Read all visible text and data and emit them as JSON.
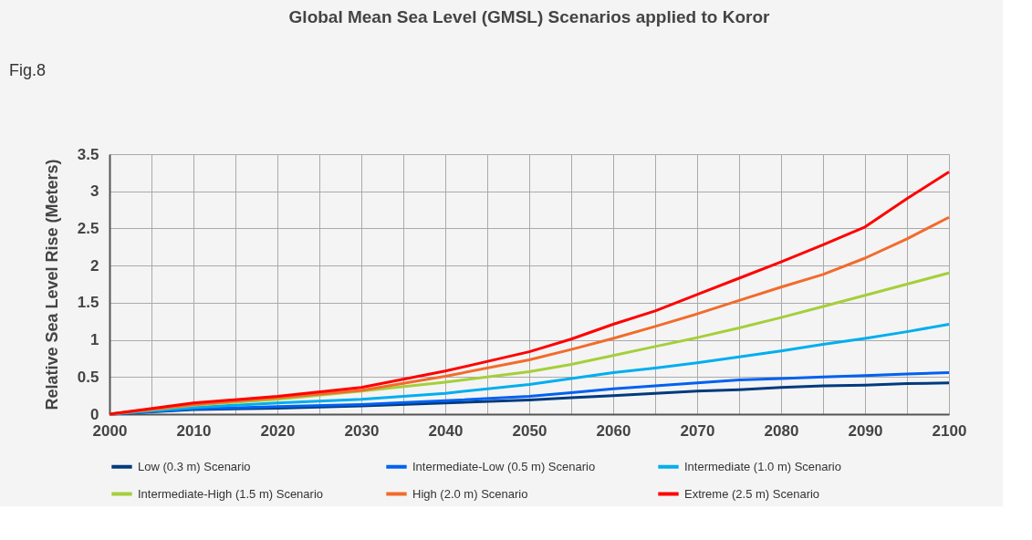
{
  "chart_data": {
    "type": "line",
    "title": "Global Mean Sea Level (GMSL) Scenarios applied to Koror",
    "ylabel": "Relative Sea Level Rise (Meters)",
    "annotations": [
      "Fig.8"
    ],
    "x": [
      2000,
      2010,
      2020,
      2030,
      2040,
      2050,
      2055,
      2060,
      2065,
      2070,
      2075,
      2080,
      2085,
      2090,
      2095,
      2100
    ],
    "series": [
      {
        "name": "Low (0.3 m) Scenario",
        "color": "#003a7d",
        "values": [
          0,
          0.06,
          0.08,
          0.11,
          0.15,
          0.19,
          0.22,
          0.25,
          0.28,
          0.31,
          0.33,
          0.36,
          0.38,
          0.39,
          0.41,
          0.42
        ]
      },
      {
        "name": "Intermediate-Low (0.5 m) Scenario",
        "color": "#0061f0",
        "values": [
          0,
          0.07,
          0.1,
          0.13,
          0.18,
          0.24,
          0.29,
          0.34,
          0.38,
          0.42,
          0.46,
          0.48,
          0.5,
          0.52,
          0.54,
          0.56
        ]
      },
      {
        "name": "Intermediate (1.0 m) Scenario",
        "color": "#00aeef",
        "values": [
          0,
          0.09,
          0.15,
          0.2,
          0.28,
          0.4,
          0.48,
          0.56,
          0.62,
          0.69,
          0.77,
          0.85,
          0.94,
          1.02,
          1.11,
          1.21
        ]
      },
      {
        "name": "Intermediate-High (1.5 m) Scenario",
        "color": "#a5cf3a",
        "values": [
          0,
          0.12,
          0.2,
          0.31,
          0.43,
          0.57,
          0.67,
          0.79,
          0.91,
          1.03,
          1.16,
          1.3,
          1.45,
          1.6,
          1.75,
          1.9
        ]
      },
      {
        "name": "High (2.0 m) Scenario",
        "color": "#f26b2b",
        "values": [
          0,
          0.13,
          0.22,
          0.32,
          0.51,
          0.73,
          0.87,
          1.02,
          1.18,
          1.35,
          1.53,
          1.71,
          1.88,
          2.1,
          2.36,
          2.65
        ]
      },
      {
        "name": "Extreme (2.5 m) Scenario",
        "color": "#ff0000",
        "values": [
          0,
          0.15,
          0.24,
          0.36,
          0.58,
          0.84,
          1.01,
          1.21,
          1.39,
          1.61,
          1.83,
          2.05,
          2.28,
          2.52,
          2.9,
          3.26
        ]
      }
    ],
    "xlim": [
      2000,
      2100
    ],
    "xticks": [
      2000,
      {
        "value": 2005,
        "label": null
      },
      2010,
      {
        "value": 2015,
        "label": null
      },
      2020,
      {
        "value": 2025,
        "label": null
      },
      2030,
      {
        "value": 2035,
        "label": null
      },
      2040,
      {
        "value": 2045,
        "label": null
      },
      2050,
      {
        "value": 2055,
        "label": null
      },
      2060,
      {
        "value": 2065,
        "label": null
      },
      2070,
      {
        "value": 2075,
        "label": null
      },
      2080,
      {
        "value": 2085,
        "label": null
      },
      2090,
      {
        "value": 2095,
        "label": null
      },
      2100
    ],
    "ylim": [
      0,
      3.5
    ],
    "yticks": [
      0,
      0.5,
      1,
      1.5,
      2,
      2.5,
      3,
      3.5
    ],
    "grid": true,
    "legend": "bottom",
    "line_style": "solid",
    "marker": "none"
  }
}
